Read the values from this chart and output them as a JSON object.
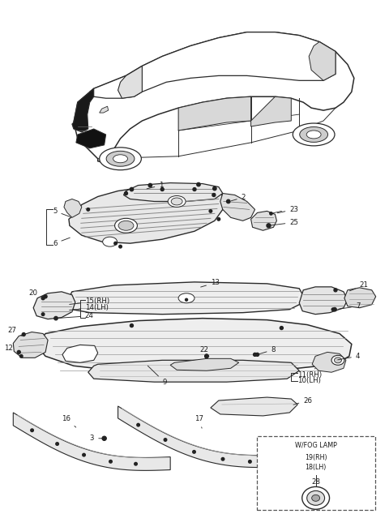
{
  "bg_color": "#ffffff",
  "line_color": "#2a2a2a",
  "label_color": "#1a1a1a",
  "fig_w": 4.8,
  "fig_h": 6.55,
  "dpi": 100,
  "box_label": "W/FOG LAMP",
  "fog_labels": [
    "19(RH)",
    "18(LH)"
  ],
  "fog_part": "28",
  "label_fontsize": 6.2,
  "small_fontsize": 5.8
}
